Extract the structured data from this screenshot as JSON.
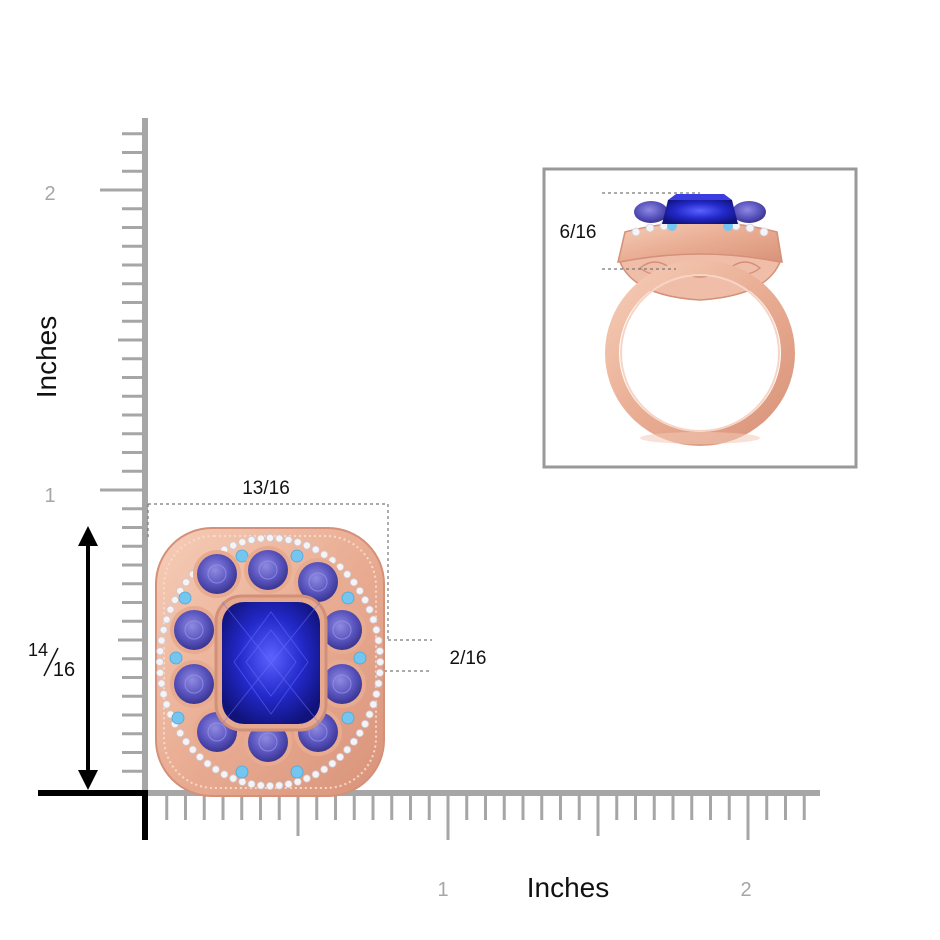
{
  "rulers": {
    "vertical": {
      "label": "Inches",
      "ticks": [
        "1",
        "2"
      ]
    },
    "horizontal": {
      "label": "Inches",
      "ticks": [
        "1",
        "2"
      ]
    }
  },
  "dimensions": {
    "width": "13/16",
    "height_numerator": "14",
    "height_denominator": "16",
    "band_width": "2/16",
    "side_height": "6/16"
  },
  "colors": {
    "ruler": "#a6a6a6",
    "rose_gold": "#e9ad93",
    "tanzanite": "#2a2fc0",
    "tanzanite_light": "#6e68c8",
    "aquamarine": "#74c6f0",
    "diamond": "#f4f4f6",
    "dim_line": "#777777"
  },
  "icons": {
    "ring_top": "ring-top-view-icon",
    "ring_side": "ring-side-view-icon"
  }
}
